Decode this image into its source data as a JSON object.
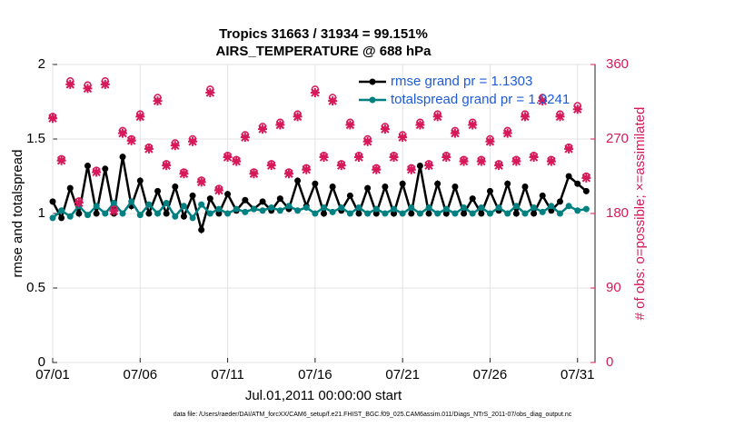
{
  "chart_data": {
    "type": "line",
    "title": "Tropics 31663 / 31934 = 99.151%",
    "subtitle": "AIRS_TEMPERATURE @ 688 hPa",
    "xlabel": "Jul.01,2011 00:00:00 start",
    "ylabel": "rmse and totalspread",
    "y2label": "# of obs: o=possible; ×=assimilated",
    "footnote": "data file: /Users/raeder/DAI/ATM_forcXX/CAM6_setup/f.e21.FHIST_BGC.f09_025.CAM6assim.011/Diags_NTrS_2011-07/obs_diag_output.nc",
    "xlim": [
      0,
      31
    ],
    "xticks": [
      {
        "value": 0,
        "label": "07/01"
      },
      {
        "value": 5,
        "label": "07/06"
      },
      {
        "value": 10,
        "label": "07/11"
      },
      {
        "value": 15,
        "label": "07/16"
      },
      {
        "value": 20,
        "label": "07/21"
      },
      {
        "value": 25,
        "label": "07/26"
      },
      {
        "value": 30,
        "label": "07/31"
      }
    ],
    "ylim": [
      0,
      2
    ],
    "yticks": [
      0,
      0.5,
      1,
      1.5,
      2
    ],
    "y2lim": [
      0,
      360
    ],
    "y2ticks": [
      0,
      90,
      180,
      270,
      360
    ],
    "grid": true,
    "legend": "upper right",
    "x": [
      0,
      0.5,
      1,
      1.5,
      2,
      2.5,
      3,
      3.5,
      4,
      4.5,
      5,
      5.5,
      6,
      6.5,
      7,
      7.5,
      8,
      8.5,
      9,
      9.5,
      10,
      10.5,
      11,
      11.5,
      12,
      12.5,
      13,
      13.5,
      14,
      14.5,
      15,
      15.5,
      16,
      16.5,
      17,
      17.5,
      18,
      18.5,
      19,
      19.5,
      20,
      20.5,
      21,
      21.5,
      22,
      22.5,
      23,
      23.5,
      24,
      24.5,
      25,
      25.5,
      26,
      26.5,
      27,
      27.5,
      28,
      28.5,
      29,
      29.5,
      30,
      30.5
    ],
    "series": [
      {
        "name": "rmse grand pr = 1.1303",
        "color": "#000000",
        "marker": "dot",
        "values": [
          1.08,
          0.97,
          1.17,
          1.0,
          1.32,
          1.0,
          1.3,
          1.0,
          1.38,
          1.05,
          1.22,
          1.0,
          1.15,
          1.0,
          1.18,
          0.98,
          1.12,
          0.89,
          1.1,
          1.0,
          1.13,
          1.02,
          1.09,
          1.03,
          1.08,
          1.02,
          1.1,
          1.03,
          1.22,
          1.05,
          1.2,
          1.0,
          1.18,
          1.02,
          1.12,
          1.0,
          1.17,
          1.0,
          1.18,
          1.0,
          1.2,
          1.0,
          1.32,
          1.0,
          1.2,
          1.0,
          1.18,
          1.0,
          1.1,
          1.0,
          1.15,
          1.02,
          1.2,
          1.0,
          1.18,
          1.0,
          1.12,
          1.02,
          1.08,
          1.25,
          1.2,
          1.15
        ]
      },
      {
        "name": "totalspread grand pr = 1.0241",
        "color": "#008080",
        "marker": "dot",
        "values": [
          0.97,
          1.02,
          0.98,
          1.05,
          0.99,
          1.05,
          1.0,
          1.07,
          1.0,
          1.08,
          0.99,
          1.06,
          1.0,
          1.07,
          0.98,
          1.05,
          0.97,
          1.06,
          1.0,
          1.03,
          1.0,
          1.03,
          1.01,
          1.03,
          1.02,
          1.04,
          1.02,
          1.05,
          1.02,
          1.04,
          1.0,
          1.04,
          1.01,
          1.04,
          1.0,
          1.04,
          1.0,
          1.03,
          1.0,
          1.03,
          1.0,
          1.04,
          1.0,
          1.04,
          1.0,
          1.03,
          1.0,
          1.04,
          1.0,
          1.04,
          1.0,
          1.04,
          1.0,
          1.05,
          1.0,
          1.04,
          1.01,
          1.05,
          1.0,
          1.05,
          1.02,
          1.03
        ]
      },
      {
        "color": "#d6195a",
        "axis": "y2",
        "marker": "o",
        "values": [
          297,
          246,
          340,
          195,
          335,
          232,
          340,
          185,
          280,
          270,
          300,
          260,
          320,
          240,
          265,
          230,
          270,
          220,
          330,
          210,
          250,
          245,
          275,
          230,
          285,
          240,
          290,
          230,
          300,
          235,
          330,
          250,
          320,
          240,
          290,
          250,
          270,
          235,
          285,
          250,
          275,
          235,
          290,
          240,
          300,
          250,
          280,
          245,
          290,
          245,
          270,
          240,
          280,
          245,
          300,
          250,
          320,
          245,
          300,
          260,
          310,
          225
        ]
      },
      {
        "color": "#d6195a",
        "axis": "y2",
        "marker": "x",
        "values": [
          295,
          244,
          336,
          193,
          331,
          230,
          336,
          183,
          277,
          268,
          297,
          258,
          316,
          238,
          262,
          228,
          267,
          218,
          326,
          208,
          248,
          243,
          272,
          228,
          282,
          238,
          287,
          228,
          297,
          233,
          326,
          248,
          316,
          238,
          287,
          248,
          267,
          233,
          282,
          248,
          272,
          233,
          287,
          238,
          297,
          248,
          277,
          243,
          287,
          243,
          267,
          238,
          277,
          243,
          297,
          248,
          316,
          243,
          297,
          258,
          306,
          223
        ]
      }
    ]
  }
}
